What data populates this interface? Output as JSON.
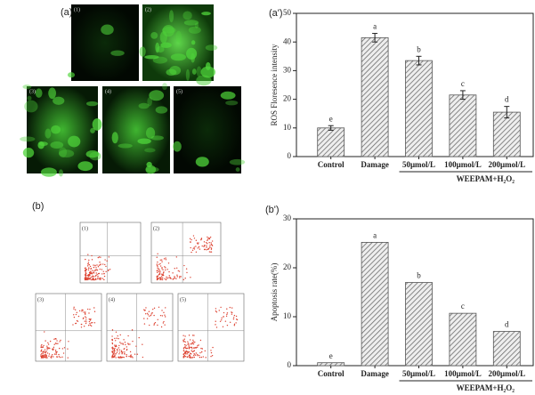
{
  "figure": {
    "panel_labels": [
      "(a)",
      "(a')",
      "(b)",
      "(b')"
    ],
    "micrograph_labels": [
      "(1)",
      "(2)",
      "(3)",
      "(4)",
      "(5)"
    ],
    "flow_labels": [
      "(1)",
      "(2)",
      "(3)",
      "(4)",
      "(5)"
    ]
  },
  "chart_data": [
    {
      "type": "bar",
      "y_label": "ROS Floresence intensity",
      "categories": [
        "Control",
        "Damage",
        "50μmol/L",
        "100μmol/L",
        "200μmol/L"
      ],
      "values": [
        10,
        41.5,
        33.5,
        21.5,
        15.5
      ],
      "errors": [
        0.8,
        1.5,
        1.5,
        1.5,
        2
      ],
      "letters": [
        "e",
        "a",
        "b",
        "c",
        "d"
      ],
      "group_label": "WEEPAM+H₂O₂",
      "color": "#555555",
      "ylim": [
        0,
        50
      ],
      "yticks": [
        0,
        10,
        20,
        30,
        40,
        50
      ]
    },
    {
      "type": "bar",
      "y_label": "Apoptosis rate(%)",
      "categories": [
        "Control",
        "Damage",
        "50μmol/L",
        "100μmol/L",
        "200μmol/L"
      ],
      "values": [
        0.6,
        25.2,
        17,
        10.7,
        7
      ],
      "letters": [
        "e",
        "a",
        "b",
        "c",
        "d"
      ],
      "group_label": "WEEPAM+H₂O₂",
      "color": "#555555",
      "ylim": [
        0,
        30
      ],
      "yticks": [
        0,
        10,
        20,
        30
      ]
    }
  ]
}
